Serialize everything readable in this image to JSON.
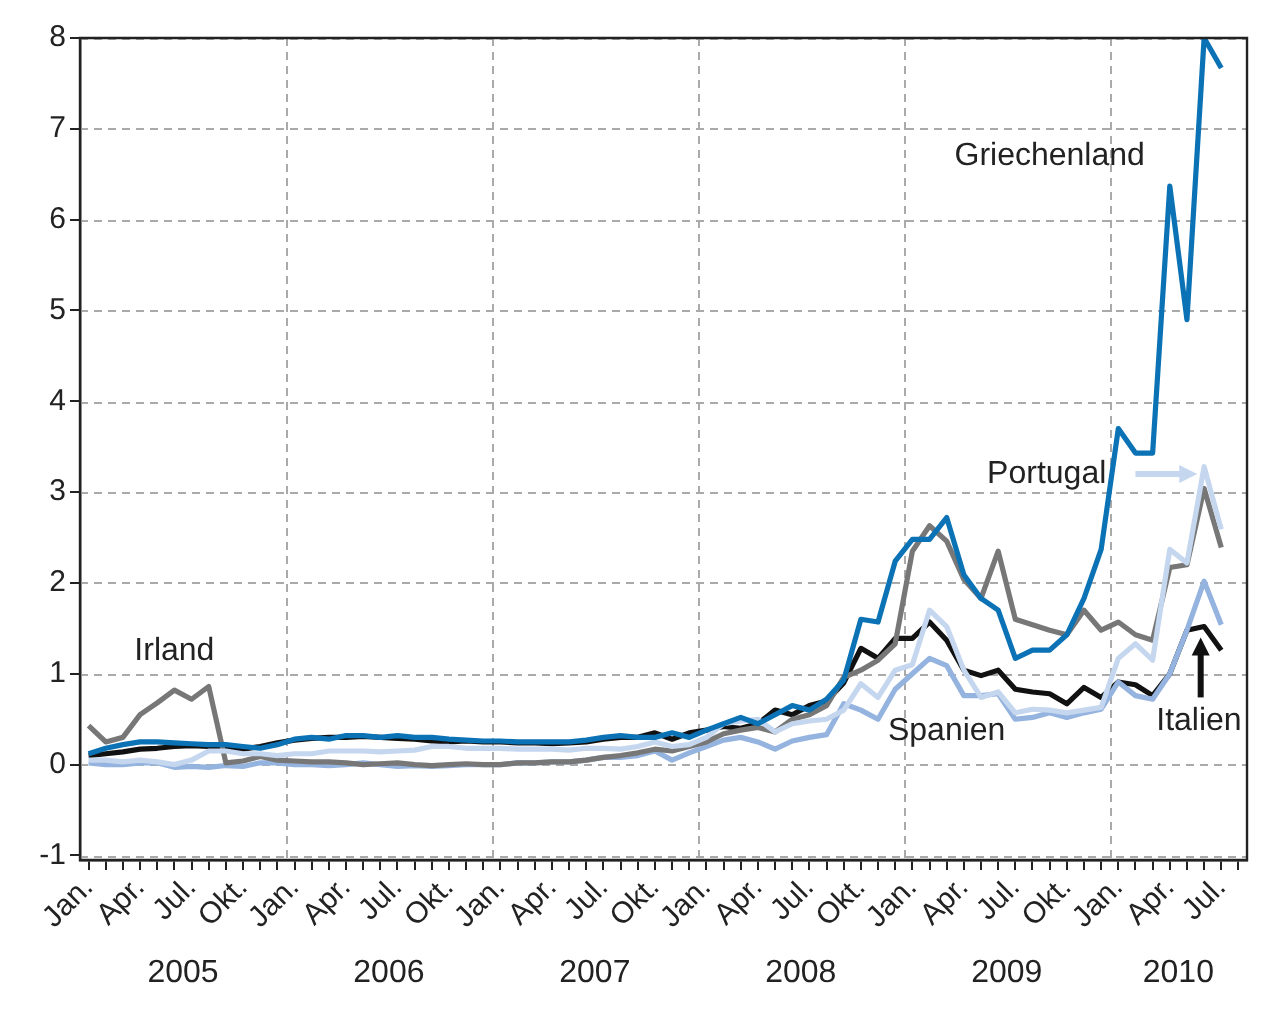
{
  "chart_data": {
    "type": "line",
    "categories": [
      "Jan.",
      null,
      null,
      "Apr.",
      null,
      null,
      "Jul.",
      null,
      null,
      "Okt.",
      null,
      null,
      "Jan.",
      null,
      null,
      "Apr.",
      null,
      null,
      "Jul.",
      null,
      null,
      "Okt.",
      null,
      null,
      "Jan.",
      null,
      null,
      "Apr.",
      null,
      null,
      "Jul.",
      null,
      null,
      "Okt.",
      null,
      null,
      "Jan.",
      null,
      null,
      "Apr.",
      null,
      null,
      "Jul.",
      null,
      null,
      "Okt.",
      null,
      null,
      "Jan.",
      null,
      null,
      "Apr.",
      null,
      null,
      "Jul.",
      null,
      null,
      "Okt.",
      null,
      null,
      "Jan.",
      null,
      null,
      "Apr.",
      null,
      null,
      "Jul.",
      null
    ],
    "ylim": [
      -1.05,
      8
    ],
    "yticks": [
      -1,
      0,
      1,
      2,
      3,
      4,
      5,
      6,
      7,
      8
    ],
    "grid": true,
    "annotations": [
      "2005",
      "2006",
      "2007",
      "2008",
      "2009",
      "2010"
    ],
    "series": [
      {
        "name": "Griechenland",
        "color": "#0a72b5",
        "values": [
          0.12,
          0.18,
          0.22,
          0.25,
          0.25,
          0.24,
          0.23,
          0.22,
          0.22,
          0.2,
          0.18,
          0.22,
          0.28,
          0.3,
          0.28,
          0.32,
          0.32,
          0.3,
          0.32,
          0.3,
          0.3,
          0.28,
          0.27,
          0.26,
          0.26,
          0.25,
          0.25,
          0.25,
          0.25,
          0.27,
          0.3,
          0.32,
          0.3,
          0.3,
          0.35,
          0.3,
          0.38,
          0.45,
          0.52,
          0.45,
          0.55,
          0.65,
          0.6,
          0.72,
          0.93,
          1.6,
          1.57,
          2.24,
          2.48,
          2.48,
          2.72,
          2.09,
          1.83,
          1.7,
          1.17,
          1.26,
          1.26,
          1.43,
          1.83,
          2.37,
          3.7,
          3.43,
          3.43,
          6.37,
          4.9,
          8.0,
          7.67,
          null
        ]
      },
      {
        "name": "Portugal",
        "color": "#c5d6ef",
        "values": [
          0.05,
          0.05,
          0.03,
          0.05,
          0.03,
          0.0,
          0.05,
          0.15,
          0.15,
          0.12,
          0.12,
          0.1,
          0.12,
          0.12,
          0.15,
          0.15,
          0.15,
          0.14,
          0.15,
          0.16,
          0.2,
          0.2,
          0.18,
          0.18,
          0.18,
          0.17,
          0.17,
          0.17,
          0.16,
          0.18,
          0.18,
          0.17,
          0.2,
          0.25,
          0.2,
          0.22,
          0.3,
          0.45,
          0.48,
          0.5,
          0.36,
          0.45,
          0.48,
          0.5,
          0.6,
          0.89,
          0.74,
          1.04,
          1.1,
          1.7,
          1.52,
          1.04,
          0.74,
          0.8,
          0.57,
          0.61,
          0.6,
          0.57,
          0.6,
          0.63,
          1.17,
          1.33,
          1.15,
          2.37,
          2.22,
          3.28,
          2.59,
          null
        ]
      },
      {
        "name": "Irland",
        "color": "#777777",
        "values": [
          0.43,
          0.25,
          0.3,
          0.55,
          0.68,
          0.82,
          0.72,
          0.86,
          0.02,
          0.04,
          0.09,
          0.05,
          0.04,
          0.03,
          0.03,
          0.02,
          0.0,
          0.01,
          0.02,
          0.0,
          -0.01,
          0.0,
          0.01,
          0.0,
          0.0,
          0.02,
          0.02,
          0.03,
          0.03,
          0.05,
          0.08,
          0.1,
          0.13,
          0.17,
          0.15,
          0.2,
          0.25,
          0.34,
          0.38,
          0.41,
          0.36,
          0.5,
          0.55,
          0.65,
          0.96,
          1.04,
          1.15,
          1.33,
          2.35,
          2.63,
          2.46,
          2.04,
          1.83,
          2.35,
          1.6,
          1.54,
          1.48,
          1.43,
          1.7,
          1.48,
          1.57,
          1.43,
          1.37,
          2.17,
          2.2,
          3.04,
          2.39,
          null
        ]
      },
      {
        "name": "Spanien",
        "color": "#94b3df",
        "values": [
          0.02,
          0.0,
          0.0,
          0.02,
          0.02,
          -0.03,
          -0.02,
          -0.03,
          -0.01,
          -0.02,
          0.02,
          0.02,
          0.0,
          0.0,
          -0.01,
          0.0,
          0.02,
          0.0,
          -0.02,
          -0.01,
          -0.02,
          -0.01,
          0.0,
          0.0,
          0.0,
          0.02,
          0.02,
          0.03,
          0.03,
          0.05,
          0.08,
          0.08,
          0.1,
          0.15,
          0.05,
          0.13,
          0.2,
          0.27,
          0.3,
          0.25,
          0.17,
          0.26,
          0.3,
          0.33,
          0.67,
          0.6,
          0.5,
          0.83,
          1.0,
          1.17,
          1.09,
          0.76,
          0.76,
          0.78,
          0.5,
          0.52,
          0.57,
          0.52,
          0.57,
          0.61,
          0.91,
          0.76,
          0.72,
          1.0,
          1.48,
          2.02,
          1.54,
          null
        ]
      },
      {
        "name": "Italien",
        "color": "#111111",
        "values": [
          0.1,
          0.12,
          0.14,
          0.17,
          0.18,
          0.2,
          0.21,
          0.2,
          0.19,
          0.17,
          0.2,
          0.24,
          0.27,
          0.29,
          0.3,
          0.3,
          0.31,
          0.3,
          0.29,
          0.28,
          0.26,
          0.25,
          0.26,
          0.25,
          0.25,
          0.24,
          0.24,
          0.23,
          0.24,
          0.25,
          0.28,
          0.3,
          0.3,
          0.35,
          0.28,
          0.35,
          0.38,
          0.42,
          0.4,
          0.45,
          0.6,
          0.55,
          0.65,
          0.7,
          0.9,
          1.28,
          1.17,
          1.39,
          1.39,
          1.57,
          1.37,
          1.04,
          0.98,
          1.04,
          0.83,
          0.8,
          0.78,
          0.67,
          0.85,
          0.74,
          0.91,
          0.88,
          0.76,
          1.0,
          1.48,
          1.52,
          1.26,
          null
        ]
      }
    ]
  }
}
